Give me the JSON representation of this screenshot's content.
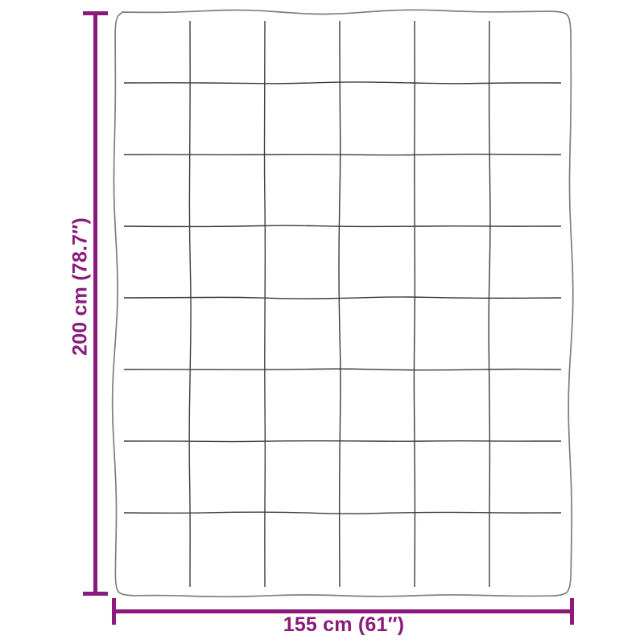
{
  "diagram": {
    "kind": "blanket-dimension-diagram",
    "height_label": "200 cm (78.7″)",
    "width_label": "155 cm (61″)",
    "quilt_grid": {
      "rows": 8,
      "columns": 6
    },
    "colors": {
      "dimension_accent": "#8B1A7C",
      "blanket_outline": "#7E7E7E",
      "quilt_grid_line": "#3C3C3C",
      "background": "#FFFFFF"
    }
  }
}
